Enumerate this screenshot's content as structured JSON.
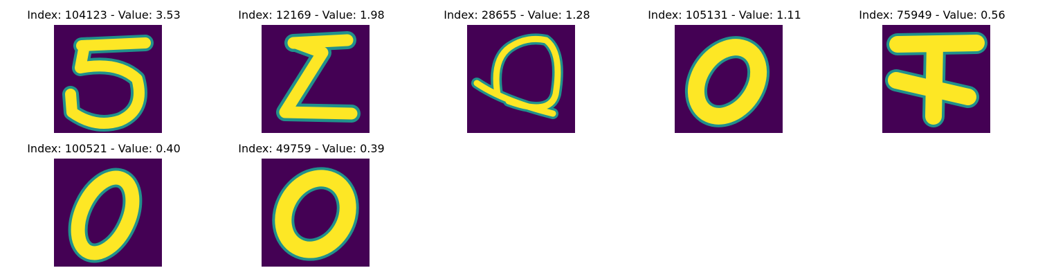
{
  "colors": {
    "background": "#440154",
    "edge": "#21918c",
    "stroke": "#fde725"
  },
  "panels": [
    {
      "title": "Index: 104123 - Value: 3.53",
      "digit_icon": "digit-5-glyph"
    },
    {
      "title": "Index: 12169 - Value: 1.98",
      "digit_icon": "digit-2-glyph"
    },
    {
      "title": "Index: 28655 - Value: 1.28",
      "digit_icon": "loop-glyph"
    },
    {
      "title": "Index: 105131 - Value: 1.11",
      "digit_icon": "digit-0-glyph"
    },
    {
      "title": "Index: 75949 - Value: 0.56",
      "digit_icon": "digit-4-glyph"
    },
    {
      "title": "Index: 100521 - Value: 0.40",
      "digit_icon": "digit-0-glyph"
    },
    {
      "title": "Index: 49759 - Value: 0.39",
      "digit_icon": "digit-0-glyph"
    }
  ]
}
